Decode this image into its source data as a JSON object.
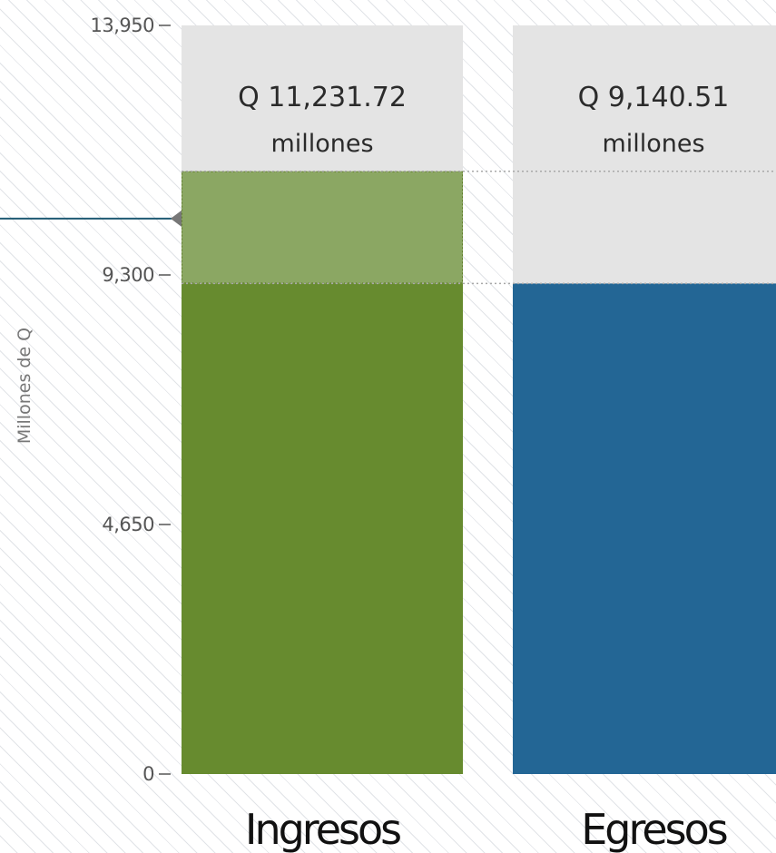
{
  "chart_data": {
    "type": "bar",
    "ylabel": "Millones de Q",
    "ylim": [
      0,
      13950
    ],
    "yticks": [
      0,
      4650,
      9300,
      13950
    ],
    "ytick_labels": [
      "0",
      "4,650",
      "9,300",
      "13,950"
    ],
    "categories": [
      "Ingresos",
      "Egresos"
    ],
    "values": [
      11231.72,
      9140.51
    ],
    "value_labels": [
      "Q 11,231.72",
      "Q 9,140.51"
    ],
    "unit_label": "millones",
    "colors": {
      "ingresos": "#678b2f",
      "ingresos_surplus": "#8ba763",
      "egresos": "#236695",
      "track": "#e4e4e4",
      "marker_line": "#1f5a73",
      "grid_dotted": "#a8a8a8"
    },
    "reference_marker_value": 10350,
    "gridlines": "dotted lines at both bar tops"
  }
}
